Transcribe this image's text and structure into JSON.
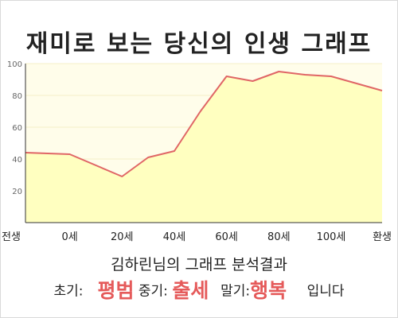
{
  "title": "재미로 보는 당신의 인생 그래프",
  "summary": "김하린님의 그래프 분석결과",
  "result": {
    "early_label": "초기:",
    "early_value": "평범",
    "mid_label": "중기:",
    "mid_value": "출세",
    "late_label": "말기:",
    "late_value": "행복",
    "suffix": "입니다"
  },
  "colors": {
    "line": "#e06666",
    "fill": "#ffffc0",
    "plot_bg": "#fffdea",
    "grid": "#ffffff",
    "highlight": "#e55a5a"
  },
  "chart_data": {
    "type": "area",
    "x_ticks": [
      "전생",
      "0세",
      "20세",
      "40세",
      "60세",
      "80세",
      "100세",
      "환생"
    ],
    "y_ticks": [
      20,
      40,
      60,
      80,
      100
    ],
    "ylim": [
      0,
      100
    ],
    "grid": true,
    "series": [
      {
        "x": [
          "전생",
          "0세",
          "20세",
          "30세",
          "40세",
          "50세",
          "60세",
          "70세",
          "80세",
          "90세",
          "100세",
          "환생"
        ],
        "values": [
          44,
          43,
          29,
          41,
          45,
          70,
          92,
          89,
          95,
          93,
          92,
          83
        ]
      }
    ]
  }
}
